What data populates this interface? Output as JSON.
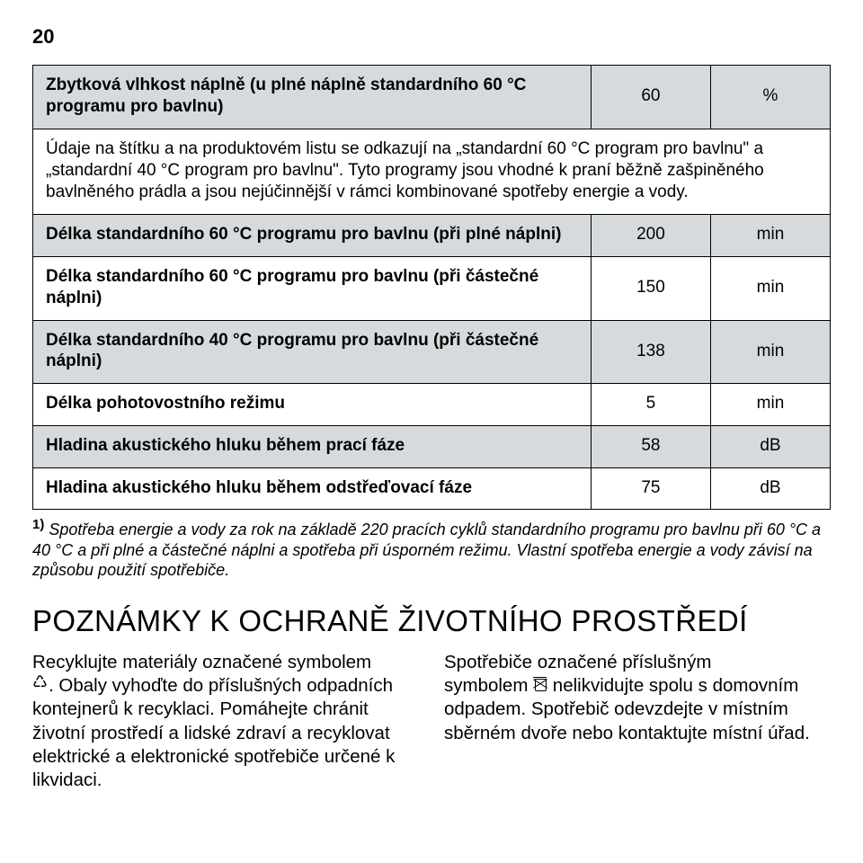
{
  "page_number": "20",
  "colors": {
    "background": "#ffffff",
    "grid": "#000000",
    "row_gray": "#d6dadc",
    "row_white": "#ffffff",
    "text": "#000000"
  },
  "table": {
    "rows": [
      {
        "shade": "gray",
        "bold": true,
        "label": "Zbytková vlhkost náplně (u plné náplně standardního 60 °C programu pro bavlnu)",
        "value": "60",
        "unit": "%"
      },
      {
        "shade": "white",
        "bold": false,
        "span": true,
        "label": "Údaje na štítku a na produktovém listu se odkazují na „standardní 60 °C program pro bavlnu\" a „standardní 40 °C program pro bavlnu\". Tyto programy jsou vhodné k praní běžně zašpiněného bavlněného prádla a jsou nejúčinnější v rámci kombinované spotřeby energie a vody."
      },
      {
        "shade": "gray",
        "bold": true,
        "label": "Délka standardního 60 °C programu pro bavlnu (při plné náplni)",
        "value": "200",
        "unit": "min"
      },
      {
        "shade": "white",
        "bold": true,
        "label": "Délka standardního 60 °C programu pro bavlnu (při částečné náplni)",
        "value": "150",
        "unit": "min"
      },
      {
        "shade": "gray",
        "bold": true,
        "label": "Délka standardního 40 °C programu pro bavlnu (při částečné náplni)",
        "value": "138",
        "unit": "min"
      },
      {
        "shade": "white",
        "bold": true,
        "label": "Délka pohotovostního režimu",
        "value": "5",
        "unit": "min"
      },
      {
        "shade": "gray",
        "bold": true,
        "label": "Hladina akustického hluku během prací fáze",
        "value": "58",
        "unit": "dB"
      },
      {
        "shade": "white",
        "bold": true,
        "label": "Hladina akustického hluku během odstřeďovací fáze",
        "value": "75",
        "unit": "dB"
      }
    ]
  },
  "footnote": {
    "marker": "1)",
    "text": "Spotřeba energie a vody za rok na základě 220 pracích cyklů standardního programu pro bavlnu při 60 °C a 40 °C a při plné a částečné náplni a spotřeba při úsporném režimu. Vlastní spotřeba energie a vody závisí na způsobu použití spotřebiče."
  },
  "section_heading": "POZNÁMKY K OCHRANĚ ŽIVOTNÍHO PROSTŘEDÍ",
  "col_left": {
    "p1": "Recyklujte materiály označené symbolem",
    "p2": ". Obaly vyhoďte do příslušných odpadních kontejnerů k recyklaci. Pomáhejte chránit životní prostředí a lidské zdraví a recyklovat elektrické a elektronické spotřebiče určené k likvidaci."
  },
  "col_right": {
    "p1": "Spotřebiče označené příslušným",
    "p2a": "symbolem ",
    "p2b": " nelikvidujte spolu s domovním odpadem. Spotřebič odevzdejte v místním sběrném dvoře nebo kontaktujte místní úřad."
  }
}
